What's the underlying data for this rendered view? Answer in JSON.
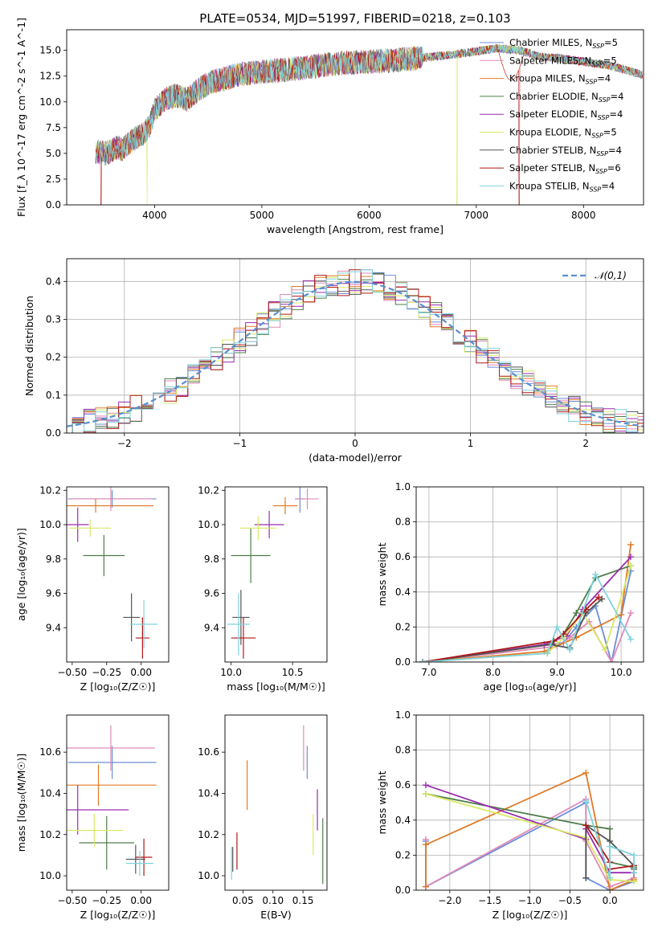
{
  "figure": {
    "title": "PLATE=0534, MJD=51997, FIBERID=0218, z=0.103"
  },
  "models": [
    {
      "name": "Chabrier MILES",
      "nssp": "5",
      "color": "#6c8ed8"
    },
    {
      "name": "Salpeter MILES",
      "nssp": "5",
      "color": "#e08ab8"
    },
    {
      "name": "Kroupa MILES",
      "nssp": "4",
      "color": "#e07b28"
    },
    {
      "name": "Chabrier ELODIE",
      "nssp": "4",
      "color": "#4f7d4b"
    },
    {
      "name": "Salpeter ELODIE",
      "nssp": "4",
      "color": "#9a2db0"
    },
    {
      "name": "Kroupa ELODIE",
      "nssp": "5",
      "color": "#d9e863"
    },
    {
      "name": "Chabrier STELIB",
      "nssp": "4",
      "color": "#555555"
    },
    {
      "name": "Salpeter STELIB",
      "nssp": "6",
      "color": "#b01818"
    },
    {
      "name": "Kroupa STELIB",
      "nssp": "4",
      "color": "#7fd3dc"
    }
  ],
  "chart_data": [
    {
      "panel": "spectrum",
      "type": "line",
      "xlabel": "wavelength [Angstrom, rest frame]",
      "ylabel": "Flux [f_λ 10^-17 erg cm^-2 s^-1 A^-1]",
      "xlim": [
        3180,
        8560
      ],
      "ylim": [
        0,
        17
      ],
      "xticks": [
        4000,
        5000,
        6000,
        7000,
        8000
      ],
      "yticks": [
        0.0,
        2.5,
        5.0,
        7.5,
        10.0,
        12.5,
        15.0
      ],
      "grid": false,
      "legend": "top-right",
      "continuum": {
        "x": [
          3450,
          3550,
          3650,
          3700,
          3800,
          3900,
          3950,
          4000,
          4100,
          4200,
          4300,
          4400,
          4500,
          4600,
          4700,
          4800,
          4900,
          5000,
          5200,
          5400,
          5600,
          5800,
          6000,
          6200,
          6400,
          6600,
          6800,
          7000,
          7200,
          7400,
          7600,
          7800,
          8000,
          8200,
          8400,
          8550
        ],
        "y": [
          5.2,
          5.0,
          5.6,
          5.4,
          6.3,
          6.9,
          7.6,
          9.2,
          10.3,
          10.6,
          10.2,
          11.1,
          11.8,
          12.1,
          12.4,
          12.7,
          12.8,
          12.9,
          13.1,
          13.3,
          13.6,
          13.8,
          13.9,
          14.0,
          14.2,
          14.4,
          14.6,
          14.9,
          15.2,
          15.0,
          14.4,
          14.2,
          13.9,
          13.6,
          13.1,
          12.6
        ]
      },
      "noise_amplitude": 1.2,
      "dips": [
        {
          "series": "Salpeter STELIB",
          "x": 3500
        },
        {
          "series": "Kroupa ELODIE",
          "x": 3930
        },
        {
          "series": "Kroupa ELODIE",
          "x": 6820
        },
        {
          "series": "Salpeter STELIB",
          "x": 7400
        }
      ]
    },
    {
      "panel": "residual-histogram",
      "type": "histogram",
      "xlabel": "(data-model)/error",
      "ylabel": "Normed distribution",
      "xlim": [
        -2.5,
        2.5
      ],
      "ylim": [
        0,
        0.46
      ],
      "xticks": [
        -2,
        -1,
        0,
        1,
        2
      ],
      "yticks": [
        0.0,
        0.1,
        0.2,
        0.3,
        0.4
      ],
      "grid": true,
      "legend": "top-right",
      "reference": {
        "label": "𝒩(0,1)",
        "mean": 0,
        "sigma": 1,
        "color": "#5b8fd0"
      },
      "bin_width": 0.1
    },
    {
      "panel": "age-vs-Z",
      "type": "errorbar",
      "xlabel": "Z [log₁₀(Z/Z☉)]",
      "ylabel": "age  [log₁₀(age/yr)]",
      "xlim": [
        -0.54,
        0.2
      ],
      "ylim": [
        9.2,
        10.22
      ],
      "xticks": [
        -0.5,
        -0.25,
        0.0
      ],
      "xticklabels": [
        "−0.50",
        "−0.25",
        "0.00"
      ],
      "yticks": [
        9.4,
        9.6,
        9.8,
        10.0,
        10.2
      ],
      "grid": false,
      "points": [
        {
          "model": "Chabrier MILES",
          "x": -0.21,
          "xerr": 0.32,
          "y": 10.15,
          "yerr": 0.05
        },
        {
          "model": "Salpeter MILES",
          "x": -0.22,
          "xerr": 0.3,
          "y": 10.15,
          "yerr": 0.07
        },
        {
          "model": "Kroupa MILES",
          "x": -0.33,
          "xerr": 0.42,
          "y": 10.11,
          "yerr": 0.04
        },
        {
          "model": "Chabrier ELODIE",
          "x": -0.27,
          "xerr": 0.15,
          "y": 9.82,
          "yerr": 0.12
        },
        {
          "model": "Salpeter ELODIE",
          "x": -0.46,
          "xerr": 0.08,
          "y": 10.0,
          "yerr": 0.1
        },
        {
          "model": "Kroupa ELODIE",
          "x": -0.37,
          "xerr": 0.15,
          "y": 9.98,
          "yerr": 0.05
        },
        {
          "model": "Chabrier STELIB",
          "x": -0.07,
          "xerr": 0.06,
          "y": 9.46,
          "yerr": 0.14
        },
        {
          "model": "Salpeter STELIB",
          "x": 0.01,
          "xerr": 0.05,
          "y": 9.34,
          "yerr": 0.12
        },
        {
          "model": "Kroupa STELIB",
          "x": 0.02,
          "xerr": 0.1,
          "y": 9.42,
          "yerr": 0.14
        }
      ]
    },
    {
      "panel": "age-vs-mass",
      "type": "errorbar",
      "xlabel": "mass [log₁₀(M/M☉)]",
      "ylabel": "",
      "xlim": [
        9.95,
        10.78
      ],
      "ylim": [
        9.2,
        10.22
      ],
      "xticks": [
        10.0,
        10.5
      ],
      "xticklabels": [
        "10.0",
        "10.5"
      ],
      "yticks": [
        9.4,
        9.6,
        9.8,
        10.0,
        10.2
      ],
      "grid": false,
      "points": [
        {
          "model": "Chabrier MILES",
          "x": 10.56,
          "xerr": 0.04,
          "y": 10.15,
          "yerr": 0.08
        },
        {
          "model": "Salpeter MILES",
          "x": 10.62,
          "xerr": 0.09,
          "y": 10.15,
          "yerr": 0.06
        },
        {
          "model": "Kroupa MILES",
          "x": 10.44,
          "xerr": 0.1,
          "y": 10.11,
          "yerr": 0.05
        },
        {
          "model": "Chabrier ELODIE",
          "x": 10.16,
          "xerr": 0.16,
          "y": 9.82,
          "yerr": 0.16
        },
        {
          "model": "Salpeter ELODIE",
          "x": 10.31,
          "xerr": 0.12,
          "y": 10.0,
          "yerr": 0.08
        },
        {
          "model": "Kroupa ELODIE",
          "x": 10.22,
          "xerr": 0.15,
          "y": 9.98,
          "yerr": 0.07
        },
        {
          "model": "Chabrier STELIB",
          "x": 10.08,
          "xerr": 0.07,
          "y": 9.46,
          "yerr": 0.16
        },
        {
          "model": "Salpeter STELIB",
          "x": 10.1,
          "xerr": 0.1,
          "y": 9.34,
          "yerr": 0.12
        },
        {
          "model": "Kroupa STELIB",
          "x": 10.06,
          "xerr": 0.09,
          "y": 9.42,
          "yerr": 0.18
        }
      ]
    },
    {
      "panel": "mass-weight-vs-age",
      "type": "line",
      "xlabel": "age  [log₁₀(age/yr)]",
      "ylabel": "mass weight",
      "xlim": [
        6.8,
        10.35
      ],
      "ylim": [
        0,
        1.0
      ],
      "xticks": [
        7,
        8,
        9,
        10
      ],
      "yticks": [
        0.0,
        0.2,
        0.4,
        0.6,
        0.8,
        1.0
      ],
      "grid": true,
      "series": [
        {
          "model": "Chabrier MILES",
          "x": [
            6.9,
            9.1,
            9.3,
            9.6,
            9.85,
            10.15
          ],
          "y": [
            0.0,
            0.11,
            0.2,
            0.32,
            0.0,
            0.52
          ]
        },
        {
          "model": "Salpeter MILES",
          "x": [
            6.9,
            9.0,
            9.2,
            9.5,
            9.85,
            10.15
          ],
          "y": [
            0.0,
            0.09,
            0.14,
            0.23,
            0.0,
            0.28
          ]
        },
        {
          "model": "Kroupa MILES",
          "x": [
            6.9,
            8.8,
            9.3,
            10.0,
            10.15
          ],
          "y": [
            0.0,
            0.06,
            0.14,
            0.27,
            0.67
          ]
        },
        {
          "model": "Chabrier ELODIE",
          "x": [
            6.9,
            8.9,
            9.1,
            9.3,
            9.6,
            10.15
          ],
          "y": [
            0.0,
            0.1,
            0.16,
            0.28,
            0.48,
            0.55
          ]
        },
        {
          "model": "Salpeter ELODIE",
          "x": [
            6.9,
            8.8,
            9.15,
            9.4,
            10.15
          ],
          "y": [
            0.0,
            0.1,
            0.15,
            0.3,
            0.6
          ]
        },
        {
          "model": "Kroupa ELODIE",
          "x": [
            6.9,
            8.85,
            9.1,
            9.4,
            9.75,
            10.15
          ],
          "y": [
            0.0,
            0.05,
            0.14,
            0.28,
            0.07,
            0.55
          ]
        },
        {
          "model": "Chabrier STELIB",
          "x": [
            6.9,
            8.9,
            9.2,
            9.45,
            9.7
          ],
          "y": [
            0.0,
            0.1,
            0.08,
            0.28,
            0.36
          ]
        },
        {
          "model": "Salpeter STELIB",
          "x": [
            6.9,
            8.95,
            9.1,
            9.45,
            9.65
          ],
          "y": [
            0.0,
            0.12,
            0.16,
            0.3,
            0.37
          ]
        },
        {
          "model": "Kroupa STELIB",
          "x": [
            6.9,
            8.85,
            9.0,
            9.2,
            9.6,
            10.15
          ],
          "y": [
            0.0,
            0.05,
            0.2,
            0.07,
            0.5,
            0.13
          ]
        }
      ]
    },
    {
      "panel": "mass-vs-Z",
      "type": "errorbar",
      "xlabel": "Z [log₁₀(Z/Z☉)]",
      "ylabel": "mass [log₁₀(M/M☉)]",
      "xlim": [
        -0.54,
        0.2
      ],
      "ylim": [
        9.93,
        10.78
      ],
      "xticks": [
        -0.5,
        -0.25,
        0.0
      ],
      "xticklabels": [
        "−0.50",
        "−0.25",
        "0.00"
      ],
      "yticks": [
        10.0,
        10.2,
        10.4,
        10.6
      ],
      "grid": false,
      "points": [
        {
          "model": "Chabrier MILES",
          "x": -0.21,
          "xerr": 0.32,
          "y": 10.55,
          "yerr": 0.08
        },
        {
          "model": "Salpeter MILES",
          "x": -0.22,
          "xerr": 0.32,
          "y": 10.62,
          "yerr": 0.11
        },
        {
          "model": "Kroupa MILES",
          "x": -0.31,
          "xerr": 0.42,
          "y": 10.44,
          "yerr": 0.1
        },
        {
          "model": "Chabrier ELODIE",
          "x": -0.25,
          "xerr": 0.2,
          "y": 10.16,
          "yerr": 0.13
        },
        {
          "model": "Salpeter ELODIE",
          "x": -0.46,
          "xerr": 0.37,
          "y": 10.32,
          "yerr": 0.12
        },
        {
          "model": "Kroupa ELODIE",
          "x": -0.34,
          "xerr": 0.21,
          "y": 10.22,
          "yerr": 0.08
        },
        {
          "model": "Chabrier STELIB",
          "x": -0.04,
          "xerr": 0.07,
          "y": 10.08,
          "yerr": 0.07
        },
        {
          "model": "Salpeter STELIB",
          "x": 0.02,
          "xerr": 0.06,
          "y": 10.09,
          "yerr": 0.09
        },
        {
          "model": "Kroupa STELIB",
          "x": -0.01,
          "xerr": 0.1,
          "y": 10.06,
          "yerr": 0.06
        }
      ]
    },
    {
      "panel": "mass-vs-EBV",
      "type": "errorbar",
      "xlabel": "E(B-V)",
      "ylabel": "",
      "xlim": [
        0.02,
        0.19
      ],
      "ylim": [
        9.93,
        10.78
      ],
      "xticks": [
        0.05,
        0.1,
        0.15
      ],
      "xticklabels": [
        "0.05",
        "0.10",
        "0.15"
      ],
      "yticks": [
        10.0,
        10.2,
        10.4,
        10.6
      ],
      "grid": false,
      "points": [
        {
          "model": "Chabrier MILES",
          "x": 0.157,
          "xerr": 0,
          "y": 10.55,
          "yerr": 0.08
        },
        {
          "model": "Salpeter MILES",
          "x": 0.151,
          "xerr": 0,
          "y": 10.62,
          "yerr": 0.11
        },
        {
          "model": "Kroupa MILES",
          "x": 0.057,
          "xerr": 0,
          "y": 10.44,
          "yerr": 0.12
        },
        {
          "model": "Chabrier ELODIE",
          "x": 0.183,
          "xerr": 0,
          "y": 10.12,
          "yerr": 0.16
        },
        {
          "model": "Salpeter ELODIE",
          "x": 0.174,
          "xerr": 0,
          "y": 10.32,
          "yerr": 0.1
        },
        {
          "model": "Kroupa ELODIE",
          "x": 0.167,
          "xerr": 0,
          "y": 10.2,
          "yerr": 0.1
        },
        {
          "model": "Chabrier STELIB",
          "x": 0.033,
          "xerr": 0,
          "y": 10.08,
          "yerr": 0.06
        },
        {
          "model": "Salpeter STELIB",
          "x": 0.04,
          "xerr": 0,
          "y": 10.12,
          "yerr": 0.09
        },
        {
          "model": "Kroupa STELIB",
          "x": 0.031,
          "xerr": 0,
          "y": 10.06,
          "yerr": 0.08
        }
      ]
    },
    {
      "panel": "mass-weight-vs-Z",
      "type": "line",
      "xlabel": "Z [log₁₀(Z/Z☉)]",
      "ylabel": "mass weight",
      "xlim": [
        -2.42,
        0.42
      ],
      "ylim": [
        0,
        1.0
      ],
      "xticks": [
        -2.0,
        -1.5,
        -1.0,
        -0.5,
        0.0
      ],
      "xticklabels": [
        "−2.0",
        "−1.5",
        "−1.0",
        "−0.5",
        "0.0"
      ],
      "yticks": [
        0.0,
        0.2,
        0.4,
        0.6,
        0.8,
        1.0
      ],
      "grid": true,
      "series": [
        {
          "model": "Chabrier MILES",
          "x": [
            -2.3,
            -2.3,
            -0.3,
            -0.3,
            0.0,
            0.3,
            0.3
          ],
          "y": [
            0.28,
            0.02,
            0.5,
            0.07,
            0.0,
            0.05,
            0.1
          ]
        },
        {
          "model": "Salpeter MILES",
          "x": [
            -2.3,
            -2.3,
            -0.3,
            -0.3,
            0.0,
            0.3
          ],
          "y": [
            0.29,
            0.02,
            0.52,
            0.28,
            0.02,
            0.07
          ]
        },
        {
          "model": "Kroupa MILES",
          "x": [
            -2.3,
            -2.3,
            -0.3,
            0.0,
            0.3
          ],
          "y": [
            0.02,
            0.26,
            0.67,
            0.0,
            0.06
          ]
        },
        {
          "model": "Chabrier ELODIE",
          "x": [
            -2.3,
            -0.3,
            0.0,
            0.0,
            0.3
          ],
          "y": [
            0.55,
            0.37,
            0.35,
            0.16,
            0.13
          ]
        },
        {
          "model": "Salpeter ELODIE",
          "x": [
            -2.3,
            -0.3,
            -0.3,
            0.0,
            0.3
          ],
          "y": [
            0.6,
            0.29,
            0.35,
            0.1,
            0.1
          ]
        },
        {
          "model": "Kroupa ELODIE",
          "x": [
            -2.3,
            -0.3,
            0.0,
            0.3
          ],
          "y": [
            0.55,
            0.3,
            0.06,
            0.05
          ]
        },
        {
          "model": "Chabrier STELIB",
          "x": [
            -0.3,
            -0.3,
            0.0,
            0.3,
            0.3
          ],
          "y": [
            0.07,
            0.37,
            0.28,
            0.14,
            0.12
          ]
        },
        {
          "model": "Salpeter STELIB",
          "x": [
            -0.3,
            0.0,
            0.0,
            0.3,
            0.3
          ],
          "y": [
            0.37,
            0.16,
            0.12,
            0.14,
            0.1
          ]
        },
        {
          "model": "Kroupa STELIB",
          "x": [
            -0.3,
            0.0,
            0.0,
            0.3,
            0.3
          ],
          "y": [
            0.51,
            0.07,
            0.25,
            0.2,
            0.1
          ]
        }
      ]
    }
  ]
}
